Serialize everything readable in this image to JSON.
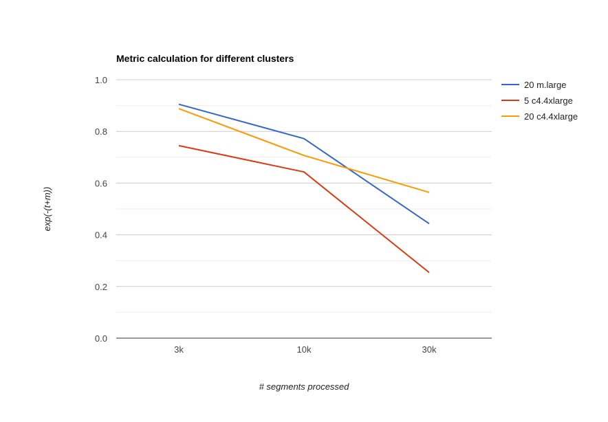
{
  "chart_data": {
    "type": "line",
    "title": "Metric calculation for different clusters",
    "xlabel": "# segments processed",
    "ylabel": "exp(-(t+m))",
    "categories": [
      "3k",
      "10k",
      "30k"
    ],
    "ylim": [
      0,
      1.0
    ],
    "yticks": [
      0.0,
      0.2,
      0.4,
      0.6,
      0.8,
      1.0
    ],
    "ytick_labels": [
      "0.0",
      "0.2",
      "0.4",
      "0.6",
      "0.8",
      "1.0"
    ],
    "grid": true,
    "minor_grid": true,
    "legend_position": "right",
    "series": [
      {
        "name": "20 m.large",
        "color": "#3366cc",
        "values": [
          0.905,
          0.772,
          0.443
        ]
      },
      {
        "name": "5 c4.4xlarge",
        "color": "#dc3912",
        "values": [
          0.745,
          0.643,
          0.254
        ]
      },
      {
        "name": "20 c4.4xlarge",
        "color": "#ff9900",
        "values": [
          0.888,
          0.707,
          0.564
        ]
      }
    ]
  }
}
